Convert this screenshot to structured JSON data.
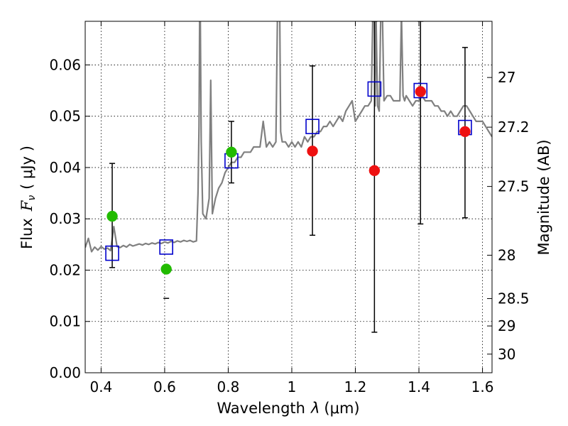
{
  "chart_data": {
    "type": "scatter",
    "xlabel_prefix": "Wavelength",
    "xlabel_symbol": "λ",
    "xlabel_unit": "(μm)",
    "ylabel_prefix": "Flux",
    "ylabel_symbol": "F",
    "ylabel_subscript": "ν",
    "ylabel_unit": "( μJy )",
    "y2label": "Magnitude (AB)",
    "xlim": [
      0.35,
      1.63
    ],
    "ylim": [
      0.0,
      0.0685
    ],
    "grid": true,
    "x_ticks": [
      {
        "value": 0.4,
        "label": "0.4"
      },
      {
        "value": 0.6,
        "label": "0.6"
      },
      {
        "value": 0.8,
        "label": "0.8"
      },
      {
        "value": 1.0,
        "label": "1"
      },
      {
        "value": 1.2,
        "label": "1.2"
      },
      {
        "value": 1.4,
        "label": "1.4"
      },
      {
        "value": 1.6,
        "label": "1.6"
      }
    ],
    "y_ticks": [
      {
        "value": 0.0,
        "label": "0.00"
      },
      {
        "value": 0.01,
        "label": "0.01"
      },
      {
        "value": 0.02,
        "label": "0.02"
      },
      {
        "value": 0.03,
        "label": "0.03"
      },
      {
        "value": 0.04,
        "label": "0.04"
      },
      {
        "value": 0.05,
        "label": "0.05"
      },
      {
        "value": 0.06,
        "label": "0.06"
      }
    ],
    "magnitude_ticks": [
      {
        "mag": 27,
        "label": "27"
      },
      {
        "mag": 27.2,
        "label": "27.2"
      },
      {
        "mag": 27.5,
        "label": "27.5"
      },
      {
        "mag": 28,
        "label": "28"
      },
      {
        "mag": 28.5,
        "label": "28.5"
      },
      {
        "mag": 29,
        "label": "29"
      },
      {
        "mag": 30,
        "label": "30"
      }
    ],
    "colors": {
      "spectrum": "#808080",
      "model_box": "#0000cc",
      "green_point": "#22bb00",
      "red_point": "#ee1111",
      "errorbar": "#000000"
    },
    "spectrum": {
      "x": [
        0.35,
        0.36,
        0.37,
        0.38,
        0.39,
        0.4,
        0.41,
        0.42,
        0.43,
        0.44,
        0.45,
        0.46,
        0.47,
        0.48,
        0.49,
        0.5,
        0.51,
        0.52,
        0.53,
        0.54,
        0.55,
        0.56,
        0.57,
        0.58,
        0.59,
        0.6,
        0.61,
        0.62,
        0.63,
        0.64,
        0.65,
        0.66,
        0.67,
        0.68,
        0.69,
        0.7,
        0.705,
        0.708,
        0.71,
        0.712,
        0.715,
        0.72,
        0.73,
        0.74,
        0.745,
        0.75,
        0.76,
        0.77,
        0.78,
        0.79,
        0.8,
        0.81,
        0.82,
        0.83,
        0.84,
        0.85,
        0.86,
        0.87,
        0.88,
        0.89,
        0.9,
        0.91,
        0.92,
        0.93,
        0.94,
        0.95,
        0.955,
        0.958,
        0.96,
        0.962,
        0.965,
        0.97,
        0.98,
        0.99,
        1.0,
        1.01,
        1.02,
        1.03,
        1.04,
        1.05,
        1.06,
        1.07,
        1.08,
        1.09,
        1.1,
        1.11,
        1.12,
        1.13,
        1.14,
        1.15,
        1.16,
        1.17,
        1.18,
        1.19,
        1.2,
        1.21,
        1.22,
        1.23,
        1.24,
        1.25,
        1.255,
        1.258,
        1.26,
        1.262,
        1.265,
        1.27,
        1.275,
        1.28,
        1.285,
        1.29,
        1.3,
        1.31,
        1.32,
        1.33,
        1.34,
        1.345,
        1.35,
        1.355,
        1.36,
        1.37,
        1.38,
        1.39,
        1.4,
        1.41,
        1.42,
        1.43,
        1.44,
        1.45,
        1.46,
        1.47,
        1.48,
        1.49,
        1.5,
        1.51,
        1.52,
        1.53,
        1.54,
        1.55,
        1.56,
        1.57,
        1.58,
        1.59,
        1.6,
        1.61,
        1.62,
        1.63
      ],
      "y": [
        0.0244,
        0.0262,
        0.0236,
        0.0245,
        0.0239,
        0.0246,
        0.0241,
        0.0243,
        0.0238,
        0.0285,
        0.0246,
        0.0244,
        0.0248,
        0.0245,
        0.025,
        0.0247,
        0.0249,
        0.0251,
        0.0249,
        0.0252,
        0.025,
        0.0253,
        0.0251,
        0.0254,
        0.0252,
        0.0255,
        0.0253,
        0.0256,
        0.0254,
        0.0257,
        0.0255,
        0.0258,
        0.0256,
        0.0258,
        0.0255,
        0.0257,
        0.035,
        0.048,
        0.07,
        0.07,
        0.045,
        0.031,
        0.03,
        0.034,
        0.057,
        0.031,
        0.034,
        0.036,
        0.037,
        0.039,
        0.04,
        0.041,
        0.041,
        0.042,
        0.042,
        0.043,
        0.043,
        0.043,
        0.044,
        0.044,
        0.044,
        0.049,
        0.044,
        0.045,
        0.044,
        0.045,
        0.07,
        0.07,
        0.07,
        0.07,
        0.047,
        0.045,
        0.045,
        0.044,
        0.045,
        0.044,
        0.045,
        0.044,
        0.046,
        0.045,
        0.046,
        0.046,
        0.047,
        0.047,
        0.048,
        0.048,
        0.049,
        0.048,
        0.049,
        0.05,
        0.049,
        0.051,
        0.052,
        0.053,
        0.049,
        0.05,
        0.051,
        0.052,
        0.052,
        0.053,
        0.07,
        0.07,
        0.07,
        0.052,
        0.07,
        0.052,
        0.051,
        0.07,
        0.07,
        0.053,
        0.054,
        0.054,
        0.053,
        0.053,
        0.053,
        0.07,
        0.054,
        0.053,
        0.054,
        0.053,
        0.052,
        0.053,
        0.053,
        0.054,
        0.053,
        0.053,
        0.053,
        0.052,
        0.052,
        0.051,
        0.051,
        0.05,
        0.051,
        0.05,
        0.05,
        0.051,
        0.052,
        0.052,
        0.051,
        0.05,
        0.049,
        0.049,
        0.049,
        0.048,
        0.047,
        0.046
      ]
    },
    "model_boxes": {
      "x": [
        0.435,
        0.605,
        0.81,
        1.065,
        1.26,
        1.405,
        1.545
      ],
      "y": [
        0.0233,
        0.0245,
        0.0413,
        0.048,
        0.0553,
        0.055,
        0.0478
      ]
    },
    "observed_points": [
      {
        "x": 0.435,
        "y": 0.0305,
        "err_low": 0.0205,
        "err_high": 0.0408,
        "color": "green"
      },
      {
        "x": 0.605,
        "y": 0.0202,
        "err_low": 0.0145,
        "err_high": 0.0145,
        "color": "green"
      },
      {
        "x": 0.81,
        "y": 0.043,
        "err_low": 0.037,
        "err_high": 0.049,
        "color": "green"
      },
      {
        "x": 1.065,
        "y": 0.0432,
        "err_low": 0.0268,
        "err_high": 0.0598,
        "color": "red"
      },
      {
        "x": 1.26,
        "y": 0.0394,
        "err_low": 0.0079,
        "err_high": 0.0685,
        "color": "red"
      },
      {
        "x": 1.405,
        "y": 0.0548,
        "err_low": 0.029,
        "err_high": 0.0685,
        "color": "red"
      },
      {
        "x": 1.545,
        "y": 0.047,
        "err_low": 0.0302,
        "err_high": 0.0634,
        "color": "red"
      }
    ]
  }
}
